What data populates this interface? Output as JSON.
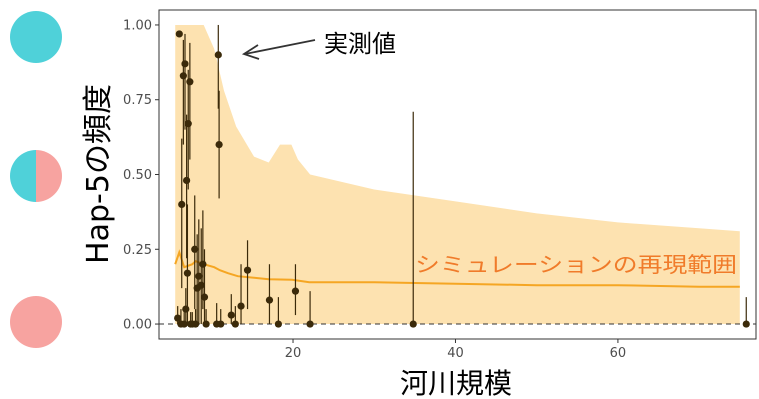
{
  "chart_data": {
    "type": "scatter",
    "xlabel": "河川規模",
    "ylabel": "Hap-5の頻度",
    "xlim": [
      3.5,
      77
    ],
    "ylim": [
      -0.05,
      1.05
    ],
    "x_ticks": [
      20,
      40,
      60
    ],
    "y_ticks": [
      0.0,
      0.25,
      0.5,
      0.75,
      1.0
    ],
    "y_tick_labels": [
      "0.00",
      "0.25",
      "0.50",
      "0.75",
      "1.00"
    ],
    "grid": false,
    "reference_line_y": 0,
    "colors": {
      "band": "#fde2b0",
      "median": "#f5a623",
      "points": "#3b2a0a",
      "legend_teal": "#4fd1d9",
      "legend_pink": "#f7a3a0",
      "annotation_orange": "#f07b2a"
    },
    "annotations": {
      "observed": "実測値",
      "simulation": "シミュレーションの再現範囲"
    },
    "legend_circles": [
      "teal",
      "half-teal-half-pink",
      "pink"
    ],
    "observed_points": [
      {
        "x": 6.0,
        "y": 0.97,
        "lo": 0.97,
        "hi": 0.97
      },
      {
        "x": 6.3,
        "y": 0.4,
        "lo": 0.12,
        "hi": 0.62
      },
      {
        "x": 6.5,
        "y": 0.83,
        "lo": 0.6,
        "hi": 0.95
      },
      {
        "x": 6.7,
        "y": 0.87,
        "lo": 0.65,
        "hi": 0.97
      },
      {
        "x": 6.9,
        "y": 0.48,
        "lo": 0.22,
        "hi": 0.7
      },
      {
        "x": 7.1,
        "y": 0.67,
        "lo": 0.45,
        "hi": 0.85
      },
      {
        "x": 7.3,
        "y": 0.81,
        "lo": 0.55,
        "hi": 0.94
      },
      {
        "x": 7.0,
        "y": 0.17,
        "lo": 0.0,
        "hi": 0.4
      },
      {
        "x": 7.9,
        "y": 0.25,
        "lo": 0.05,
        "hi": 0.43
      },
      {
        "x": 8.2,
        "y": 0.12,
        "lo": 0.0,
        "hi": 0.3
      },
      {
        "x": 8.4,
        "y": 0.16,
        "lo": 0.0,
        "hi": 0.35
      },
      {
        "x": 8.7,
        "y": 0.13,
        "lo": 0.0,
        "hi": 0.32
      },
      {
        "x": 9.1,
        "y": 0.09,
        "lo": 0.0,
        "hi": 0.25
      },
      {
        "x": 8.9,
        "y": 0.2,
        "lo": 0.05,
        "hi": 0.38
      },
      {
        "x": 10.8,
        "y": 0.9,
        "lo": 0.72,
        "hi": 1.0
      },
      {
        "x": 10.9,
        "y": 0.6,
        "lo": 0.42,
        "hi": 0.78
      },
      {
        "x": 13.6,
        "y": 0.06,
        "lo": 0.0,
        "hi": 0.2
      },
      {
        "x": 12.4,
        "y": 0.03,
        "lo": 0.0,
        "hi": 0.1
      },
      {
        "x": 14.4,
        "y": 0.18,
        "lo": 0.05,
        "hi": 0.28
      },
      {
        "x": 17.1,
        "y": 0.08,
        "lo": 0.0,
        "hi": 0.2
      },
      {
        "x": 20.3,
        "y": 0.11,
        "lo": 0.03,
        "hi": 0.2
      },
      {
        "x": 5.8,
        "y": 0.02,
        "lo": 0.0,
        "hi": 0.06
      },
      {
        "x": 6.2,
        "y": 0.0,
        "lo": 0.0,
        "hi": 0.05
      },
      {
        "x": 6.6,
        "y": 0.0,
        "lo": 0.0,
        "hi": 0.04
      },
      {
        "x": 6.8,
        "y": 0.05,
        "lo": 0.0,
        "hi": 0.12
      },
      {
        "x": 7.4,
        "y": 0.0,
        "lo": 0.0,
        "hi": 0.04
      },
      {
        "x": 7.6,
        "y": 0.0,
        "lo": 0.0,
        "hi": 0.04
      },
      {
        "x": 8.0,
        "y": 0.0,
        "lo": 0.0,
        "hi": 0.05
      },
      {
        "x": 9.3,
        "y": 0.0,
        "lo": 0.0,
        "hi": 0.05
      },
      {
        "x": 10.6,
        "y": 0.0,
        "lo": 0.0,
        "hi": 0.07
      },
      {
        "x": 11.1,
        "y": 0.0,
        "lo": 0.0,
        "hi": 0.05
      },
      {
        "x": 12.9,
        "y": 0.0,
        "lo": 0.0,
        "hi": 0.06
      },
      {
        "x": 18.2,
        "y": 0.0,
        "lo": 0.0,
        "hi": 0.09
      },
      {
        "x": 22.1,
        "y": 0.0,
        "lo": 0.0,
        "hi": 0.11
      },
      {
        "x": 34.8,
        "y": 0.0,
        "lo": 0.0,
        "hi": 0.71
      },
      {
        "x": 75.8,
        "y": 0.0,
        "lo": 0.0,
        "hi": 0.09
      }
    ],
    "simulation_band": {
      "x": [
        5.5,
        6.0,
        9.0,
        10.3,
        11.5,
        13.0,
        15.2,
        17.0,
        18.4,
        19.8,
        20.6,
        22.1,
        30.0,
        40.0,
        50.0,
        60.0,
        70.0,
        75.0
      ],
      "upper": [
        1.0,
        1.0,
        1.0,
        0.92,
        0.78,
        0.66,
        0.56,
        0.54,
        0.6,
        0.6,
        0.55,
        0.5,
        0.45,
        0.41,
        0.37,
        0.34,
        0.32,
        0.31
      ],
      "lower": [
        0.0,
        0.0,
        0.0,
        0.0,
        0.0,
        0.0,
        0.0,
        0.0,
        0.0,
        0.0,
        0.0,
        0.0,
        0.0,
        0.0,
        0.0,
        0.0,
        0.0,
        0.0
      ]
    },
    "simulation_median": {
      "x": [
        5.5,
        6.0,
        6.6,
        7.6,
        8.0,
        9.0,
        10.3,
        11.0,
        12.0,
        13.2,
        15.2,
        17.0,
        19.9,
        22.0,
        30.0,
        40.0,
        50.0,
        60.0,
        70.0,
        75.0
      ],
      "y": [
        0.2,
        0.24,
        0.19,
        0.2,
        0.21,
        0.2,
        0.19,
        0.18,
        0.17,
        0.16,
        0.155,
        0.15,
        0.148,
        0.14,
        0.14,
        0.135,
        0.13,
        0.13,
        0.125,
        0.125
      ]
    }
  }
}
